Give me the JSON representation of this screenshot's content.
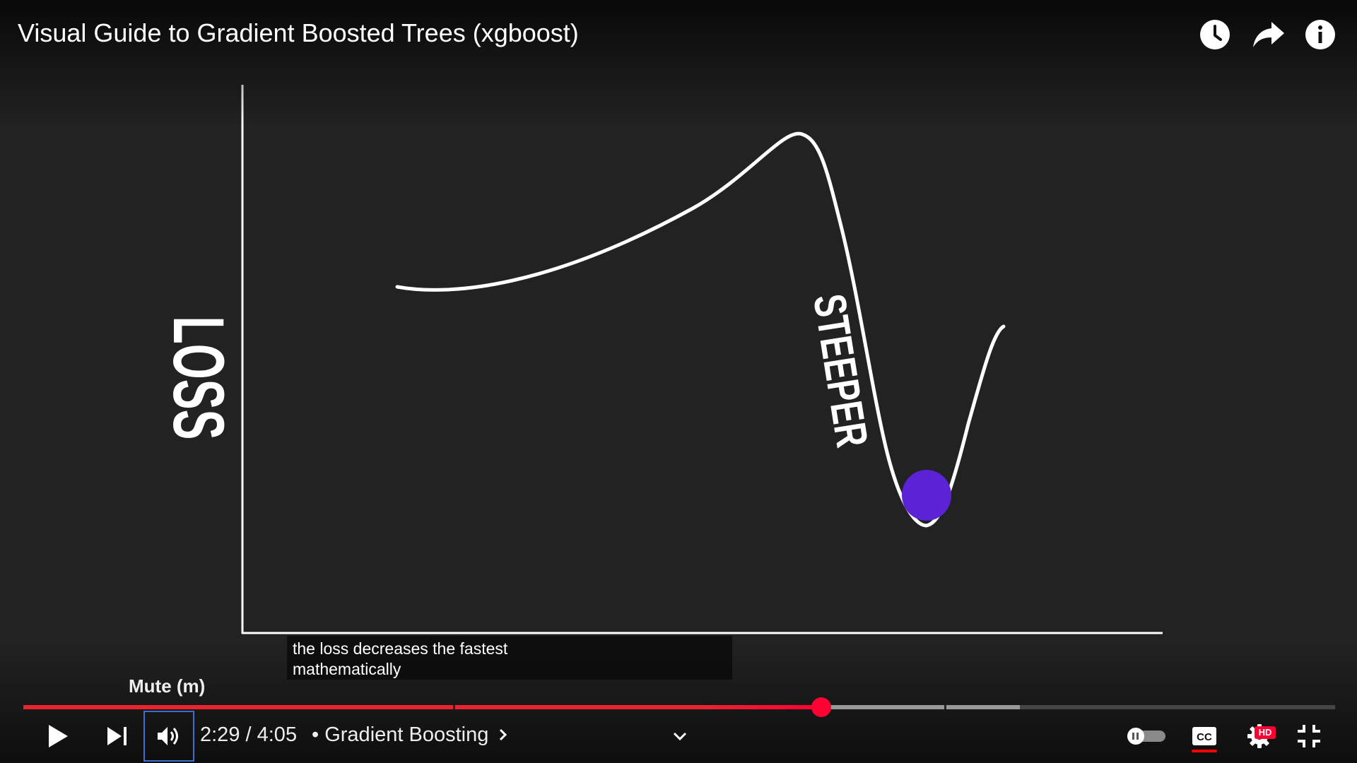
{
  "video": {
    "title": "Visual Guide to Gradient Boosted Trees (xgboost)"
  },
  "top_actions": [
    {
      "name": "watch-later",
      "icon": "clock-icon"
    },
    {
      "name": "share",
      "icon": "share-arrow-icon"
    },
    {
      "name": "info",
      "icon": "info-icon"
    }
  ],
  "frame": {
    "y_label": "LOSS",
    "curve_label": "STEEPER",
    "ball_color": "#5b22d6",
    "line_color": "#ffffff"
  },
  "captions": {
    "line1": "the loss decreases the fastest",
    "line2": "mathematically"
  },
  "tooltip": {
    "text": "Mute (m)"
  },
  "playback": {
    "current_time": "2:29",
    "duration": "4:05",
    "separator": " / ",
    "chapter_prefix": "•",
    "chapter": "Gradient Boosting",
    "played_fraction": 0.6085,
    "buffered_fraction": 0.7595,
    "accent_color": "#ff0033"
  },
  "controls": {
    "play": "play-icon",
    "next": "next-icon",
    "volume": "volume-icon",
    "chapter_chevron": "chevron-right-icon",
    "expand": "chevron-down-icon",
    "autoplay": "autoplay-toggle",
    "captions": "cc-icon",
    "settings": "gear-icon",
    "quality_badge": "HD",
    "exit_fullscreen": "exit-fullscreen-icon"
  }
}
